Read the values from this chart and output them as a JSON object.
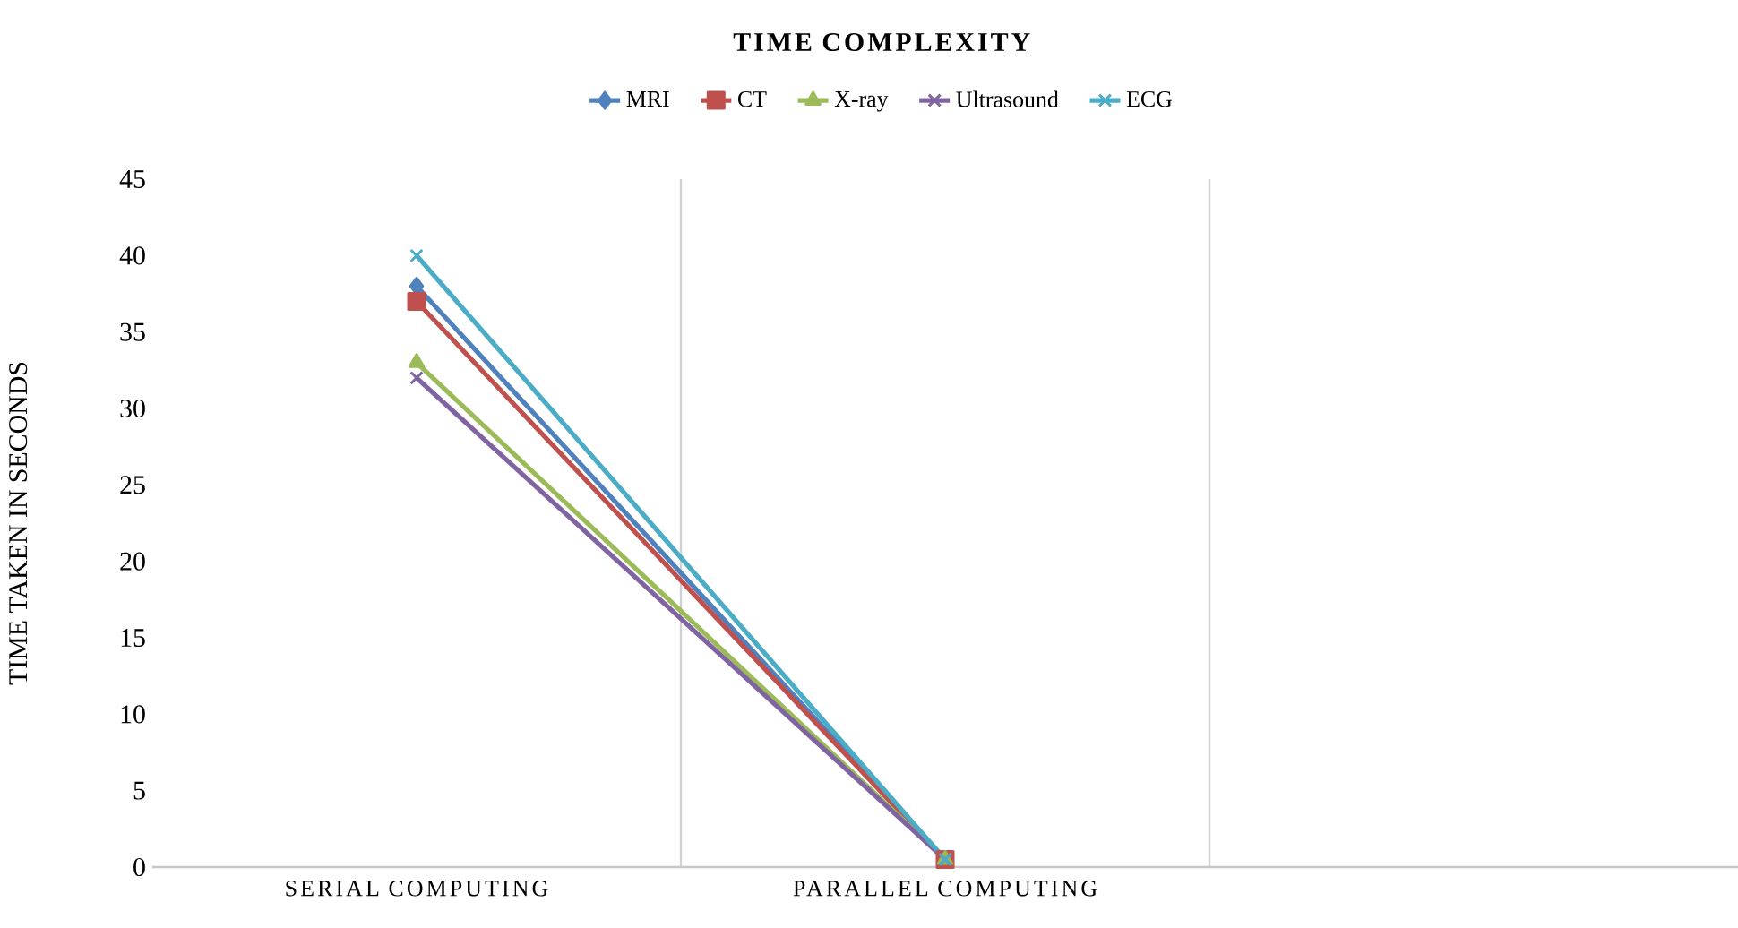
{
  "chart_data": {
    "type": "line",
    "title": "TIME COMPLEXITY",
    "ylabel": "TIME TAKEN IN SECONDS",
    "categories": [
      "SERIAL COMPUTING",
      "PARALLEL COMPUTING",
      null
    ],
    "series": [
      {
        "name": "MRI",
        "color": "#4f81bd",
        "marker": "diamond",
        "values": [
          38,
          0.5,
          null
        ]
      },
      {
        "name": "CT",
        "color": "#c0504d",
        "marker": "square",
        "values": [
          37,
          0.5,
          null
        ]
      },
      {
        "name": "X-ray",
        "color": "#9bbb59",
        "marker": "triangle",
        "values": [
          33,
          0.5,
          null
        ]
      },
      {
        "name": "Ultrasound",
        "color": "#8064a2",
        "marker": "cross",
        "values": [
          32,
          0.5,
          null
        ]
      },
      {
        "name": "ECG",
        "color": "#4bacc6",
        "marker": "cross",
        "values": [
          40,
          0.5,
          null
        ]
      }
    ],
    "ylim": [
      0,
      45
    ],
    "yticks": [
      0,
      5,
      10,
      15,
      20,
      25,
      30,
      35,
      40,
      45
    ],
    "grid": "x",
    "legend": "top"
  }
}
